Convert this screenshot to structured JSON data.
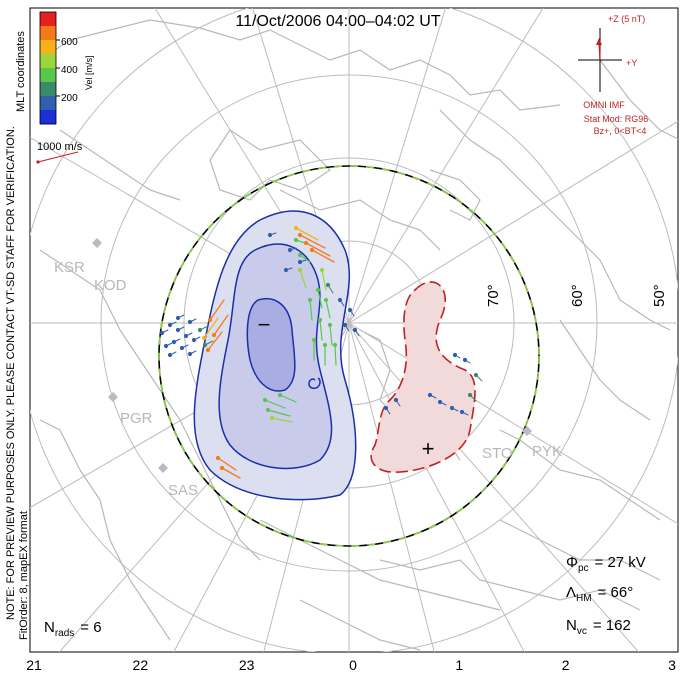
{
  "title": "11/Oct/2006 04:00–04:02 UT",
  "colorbar": {
    "label": "Vel [m/s]",
    "ticks": [
      "600",
      "400",
      "200"
    ],
    "colors": [
      "#e62020",
      "#f47a1a",
      "#f5b21c",
      "#9bd63a",
      "#57c84b",
      "#3a8a6b",
      "#2f5fae",
      "#1c2fd6"
    ]
  },
  "mlt_label": "MLT coordinates",
  "scale_vector": "1000 m/s",
  "side_note": [
    "NOTE: FOR PREVIEW PURPOSES ONLY. PLEASE CONTACT VT-SD STAFF FOR VERIFICATION.",
    "FitOrder: 8, mapEX format"
  ],
  "imf": {
    "z_label": "+Z (5 nT)",
    "y_label": "+Y",
    "source": "OMNI IMF",
    "stat_model": "Stat Mod: RG96",
    "condition": "Bz+, 0<BT<4"
  },
  "lat_labels": [
    "70°",
    "60°",
    "50°"
  ],
  "stations": [
    {
      "code": "KSR"
    },
    {
      "code": "KOD"
    },
    {
      "code": "PGR"
    },
    {
      "code": "SAS"
    },
    {
      "code": "STO"
    },
    {
      "code": "PYK"
    }
  ],
  "potential_signs": {
    "negative": "−",
    "positive": "+"
  },
  "stats": {
    "phi_pc": {
      "symbol": "Φ",
      "sub": "pc",
      "value": "= 27 kV"
    },
    "lambda_hm": {
      "symbol": "Λ",
      "sub": "HM",
      "value": "= 66°"
    },
    "n_vc": {
      "symbol": "N",
      "sub": "vc",
      "value": "= 162"
    },
    "n_rads": {
      "symbol": "N",
      "sub": "rads",
      "value": "= 6"
    }
  },
  "mlt_axis": [
    "21",
    "22",
    "23",
    "0",
    "1",
    "2",
    "3"
  ]
}
